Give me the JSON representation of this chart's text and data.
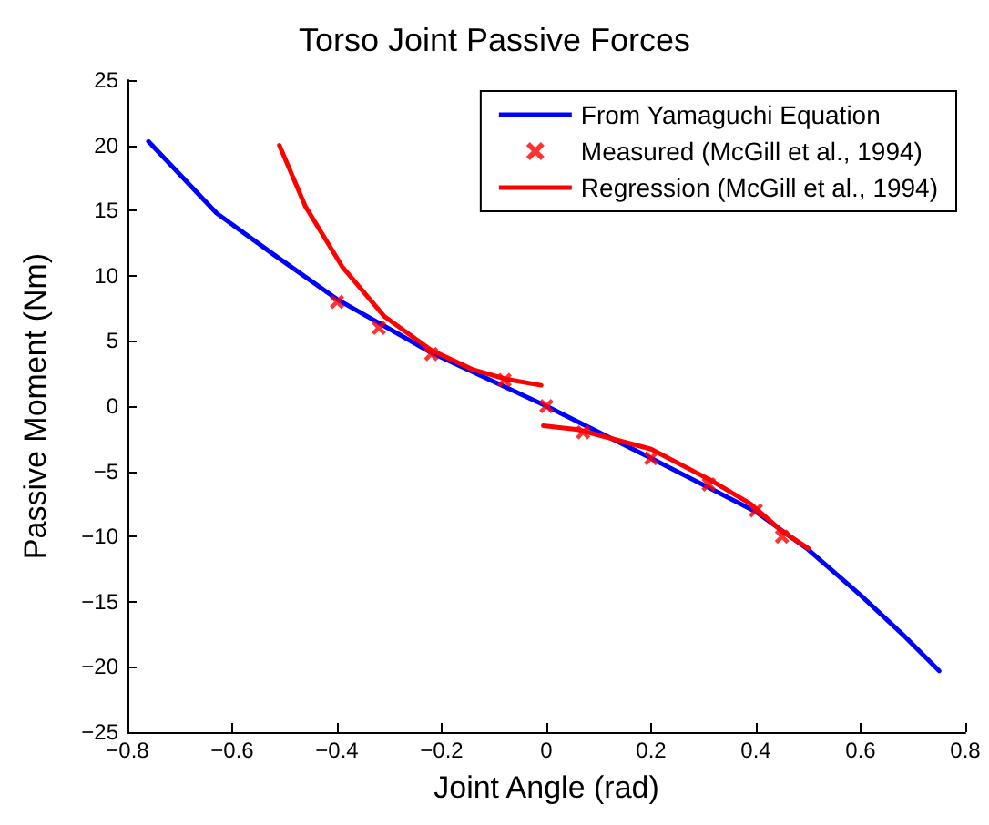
{
  "chart_data": {
    "type": "line",
    "title": "Torso Joint Passive Forces",
    "xlabel": "Joint Angle (rad)",
    "ylabel": "Passive Moment (Nm)",
    "xlim": [
      -0.8,
      0.8
    ],
    "xticks": [
      -0.8,
      -0.6,
      -0.4,
      -0.2,
      0,
      0.2,
      0.4,
      0.6,
      0.8
    ],
    "ylim": [
      -25,
      25
    ],
    "yticks": [
      -25,
      -20,
      -15,
      -10,
      -5,
      0,
      5,
      10,
      15,
      20,
      25
    ],
    "grid": false,
    "legend": "top right",
    "series": [
      {
        "name": "From Yamaguchi Equation",
        "marker": "none",
        "color": "#0000ff",
        "x": [
          -0.76,
          -0.63,
          -0.52,
          -0.4,
          -0.22,
          0,
          0.2,
          0.4,
          0.5,
          0.6,
          0.68,
          0.75
        ],
        "values": [
          20.3,
          14.8,
          11.6,
          8.2,
          4.1,
          0,
          -4,
          -8.1,
          -11,
          -14.5,
          -17.5,
          -20.3
        ]
      },
      {
        "name": "Measured (McGill et al., 1994)",
        "type": "scatter",
        "marker": "cross",
        "color": "#ff0000",
        "x": [
          -0.4,
          -0.32,
          -0.22,
          -0.08,
          0,
          0.07,
          0.2,
          0.31,
          0.4,
          0.45
        ],
        "values": [
          8,
          6,
          4,
          2,
          0,
          -2,
          -4,
          -6,
          -8,
          -10
        ]
      },
      {
        "name": "Regression (McGill et al., 1994)",
        "marker": "none",
        "color": "#ff0000",
        "x": [
          -0.51,
          -0.46,
          -0.39,
          -0.31,
          -0.22,
          -0.14,
          -0.08,
          -0.01,
          -0.008,
          -0.006,
          0.06,
          0.2,
          0.31,
          0.39,
          0.45,
          0.5
        ],
        "values": [
          20,
          15.3,
          10.7,
          6.9,
          4.3,
          2.8,
          2.1,
          1.6,
          null,
          -1.5,
          -1.8,
          -3.3,
          -5.6,
          -7.5,
          -9.6,
          -10.9
        ]
      }
    ]
  }
}
